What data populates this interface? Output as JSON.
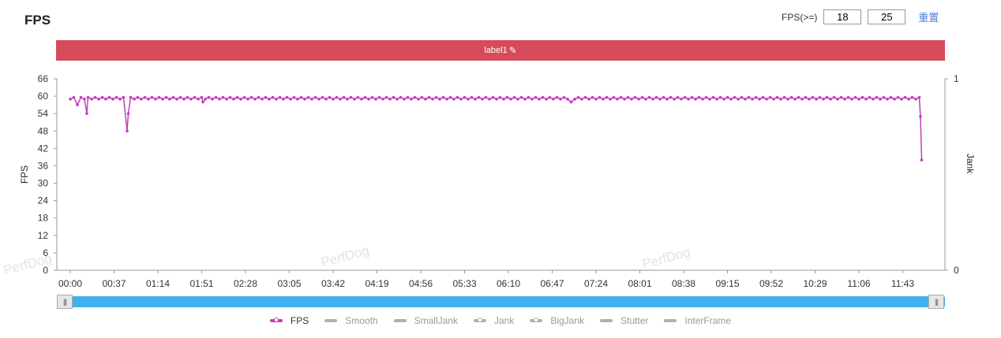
{
  "header": {
    "title": "FPS",
    "threshold_label": "FPS(>=)",
    "threshold_1": "18",
    "threshold_2": "25",
    "reset_label": "重置"
  },
  "label_bar": {
    "text": "label1",
    "color": "#d64b5a"
  },
  "watermark": "PerfDog",
  "colors": {
    "fps": "#c23fba",
    "slider": "#3fb1ee",
    "inactive": "#b0b0b0"
  },
  "chart_data": {
    "type": "line",
    "ylabel_left": "FPS",
    "ylabel_right": "Jank",
    "y_left_ticks": [
      0,
      6,
      12,
      18,
      24,
      30,
      36,
      42,
      48,
      54,
      60,
      66
    ],
    "y_left_range": [
      0,
      66
    ],
    "y_right_ticks": [
      0,
      1
    ],
    "y_right_range": [
      0,
      1
    ],
    "x_range_seconds": [
      0,
      720
    ],
    "x_ticks": [
      "00:00",
      "00:37",
      "01:14",
      "01:51",
      "02:28",
      "03:05",
      "03:42",
      "04:19",
      "04:56",
      "05:33",
      "06:10",
      "06:47",
      "07:24",
      "08:01",
      "08:38",
      "09:15",
      "09:52",
      "10:29",
      "11:06",
      "11:43"
    ],
    "series": [
      {
        "name": "FPS",
        "baseline": 59,
        "dips": [
          {
            "t": 6,
            "v": 57
          },
          {
            "t": 14,
            "v": 54
          },
          {
            "t": 48,
            "v": 48
          },
          {
            "t": 49,
            "v": 54
          },
          {
            "t": 112,
            "v": 58
          },
          {
            "t": 423,
            "v": 58
          }
        ],
        "tail": [
          {
            "t": 718,
            "v": 53
          },
          {
            "t": 719,
            "v": 38
          }
        ]
      }
    ],
    "legend": [
      {
        "name": "FPS",
        "active": true,
        "dot": true
      },
      {
        "name": "Smooth",
        "active": false,
        "dot": false
      },
      {
        "name": "SmallJank",
        "active": false,
        "dot": false
      },
      {
        "name": "Jank",
        "active": false,
        "dot": true
      },
      {
        "name": "BigJank",
        "active": false,
        "dot": true
      },
      {
        "name": "Stutter",
        "active": false,
        "dot": false
      },
      {
        "name": "InterFrame",
        "active": false,
        "dot": false
      }
    ]
  }
}
